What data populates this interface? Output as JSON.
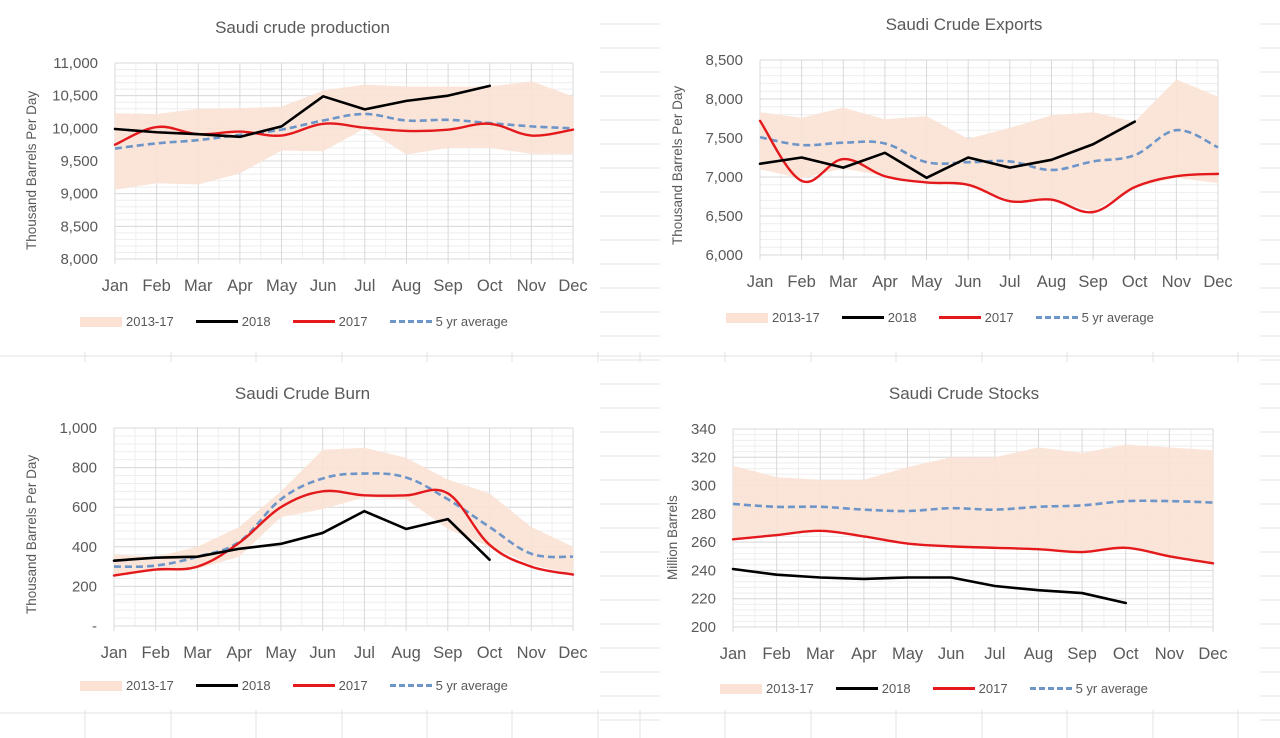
{
  "colors": {
    "band": "#fbe2d5",
    "y2018": "#000000",
    "y2017": "#e3191c",
    "avg": "#6d95c8",
    "grid_major": "#d9d9d9",
    "grid_minor": "#eeeeee",
    "text": "#595959"
  },
  "legend_labels": {
    "band": "2013-17",
    "y2018": "2018",
    "y2017": "2017",
    "avg": "5 yr average"
  },
  "chart_data": [
    {
      "id": "production",
      "type": "line",
      "title": "Saudi crude production",
      "xlabel": "",
      "ylabel": "Thousand Barrels Per Day",
      "categories": [
        "Jan",
        "Feb",
        "Mar",
        "Apr",
        "May",
        "Jun",
        "Jul",
        "Aug",
        "Sep",
        "Oct",
        "Nov",
        "Dec"
      ],
      "ylim": [
        8000,
        11000
      ],
      "yticks": [
        8000,
        8500,
        9000,
        9500,
        10000,
        10500,
        11000
      ],
      "ytick_labels": [
        "8,000",
        "8,500",
        "9,000",
        "9,500",
        "10,000",
        "10,500",
        "11,000"
      ],
      "grid": true,
      "legend_position": "bottom",
      "band": {
        "name": "2013-17",
        "upper": [
          10230,
          10220,
          10300,
          10310,
          10330,
          10580,
          10670,
          10640,
          10640,
          10640,
          10720,
          10490
        ],
        "lower": [
          9060,
          9160,
          9140,
          9310,
          9660,
          9650,
          10000,
          9600,
          9700,
          9700,
          9610,
          9610
        ]
      },
      "series": [
        {
          "name": "2018",
          "values": [
            9990,
            9940,
            9910,
            9870,
            10030,
            10490,
            10290,
            10420,
            10500,
            10650,
            null,
            null
          ]
        },
        {
          "name": "2017",
          "values": [
            9750,
            10020,
            9910,
            9950,
            9890,
            10070,
            10010,
            9960,
            9980,
            10070,
            9890,
            9980
          ]
        },
        {
          "name": "5 yr average",
          "values": [
            9690,
            9770,
            9820,
            9900,
            9980,
            10120,
            10220,
            10120,
            10130,
            10080,
            10030,
            10000
          ]
        }
      ]
    },
    {
      "id": "exports",
      "type": "line",
      "title": "Saudi Crude Exports",
      "xlabel": "",
      "ylabel": "Thousand Barrels Per Day",
      "categories": [
        "Jan",
        "Feb",
        "Mar",
        "Apr",
        "May",
        "Jun",
        "Jul",
        "Aug",
        "Sep",
        "Oct",
        "Nov",
        "Dec"
      ],
      "ylim": [
        6000,
        8500
      ],
      "yticks": [
        6000,
        6500,
        7000,
        7500,
        8000,
        8500
      ],
      "ytick_labels": [
        "6,000",
        "6,500",
        "7,000",
        "7,500",
        "8,000",
        "8,500"
      ],
      "grid": true,
      "legend_position": "bottom",
      "band": {
        "name": "2013-17",
        "upper": [
          7830,
          7760,
          7890,
          7740,
          7780,
          7490,
          7630,
          7790,
          7830,
          7710,
          8250,
          8030
        ],
        "lower": [
          7100,
          6980,
          7110,
          7010,
          6930,
          6900,
          6700,
          6710,
          6560,
          6870,
          6990,
          6920
        ]
      },
      "series": [
        {
          "name": "2018",
          "values": [
            7170,
            7250,
            7120,
            7310,
            6990,
            7250,
            7120,
            7220,
            7420,
            7710,
            null,
            null
          ]
        },
        {
          "name": "2017",
          "values": [
            7720,
            6950,
            7230,
            7010,
            6930,
            6900,
            6690,
            6710,
            6550,
            6870,
            7010,
            7040
          ]
        },
        {
          "name": "5 yr average",
          "values": [
            7510,
            7410,
            7440,
            7430,
            7190,
            7190,
            7200,
            7090,
            7200,
            7280,
            7600,
            7380
          ]
        }
      ]
    },
    {
      "id": "burn",
      "type": "line",
      "title": "Saudi Crude Burn",
      "xlabel": "",
      "ylabel": "Thousand Barrels Per Day",
      "categories": [
        "Jan",
        "Feb",
        "Mar",
        "Apr",
        "May",
        "Jun",
        "Jul",
        "Aug",
        "Sep",
        "Oct",
        "Nov",
        "Dec"
      ],
      "ylim": [
        0,
        1000
      ],
      "yticks": [
        0,
        200,
        400,
        600,
        800,
        1000
      ],
      "ytick_labels": [
        "-",
        "200",
        "400",
        "600",
        "800",
        "1,000"
      ],
      "grid": true,
      "legend_position": "bottom",
      "band": {
        "name": "2013-17",
        "upper": [
          360,
          350,
          400,
          500,
          680,
          890,
          900,
          850,
          740,
          670,
          500,
          400
        ],
        "lower": [
          250,
          280,
          290,
          350,
          550,
          590,
          650,
          640,
          490,
          400,
          310,
          260
        ]
      },
      "series": [
        {
          "name": "2018",
          "values": [
            330,
            345,
            350,
            390,
            415,
            470,
            580,
            490,
            540,
            335,
            null,
            null
          ]
        },
        {
          "name": "2017",
          "values": [
            255,
            285,
            300,
            420,
            600,
            680,
            660,
            660,
            670,
            410,
            300,
            260
          ]
        },
        {
          "name": "5 yr average",
          "values": [
            300,
            305,
            350,
            425,
            640,
            745,
            770,
            750,
            640,
            500,
            365,
            350
          ]
        }
      ]
    },
    {
      "id": "stocks",
      "type": "line",
      "title": "Saudi Crude Stocks",
      "xlabel": "",
      "ylabel": "Million Barrels",
      "categories": [
        "Jan",
        "Feb",
        "Mar",
        "Apr",
        "May",
        "Jun",
        "Jul",
        "Aug",
        "Sep",
        "Oct",
        "Nov",
        "Dec"
      ],
      "ylim": [
        200,
        340
      ],
      "yticks": [
        200,
        220,
        240,
        260,
        280,
        300,
        320,
        340
      ],
      "ytick_labels": [
        "200",
        "220",
        "240",
        "260",
        "280",
        "300",
        "320",
        "340"
      ],
      "grid": true,
      "legend_position": "bottom",
      "band": {
        "name": "2013-17",
        "upper": [
          314,
          306,
          304,
          304,
          313,
          320,
          320,
          327,
          323,
          329,
          327,
          325
        ],
        "lower": [
          262,
          265,
          268,
          264,
          259,
          257,
          256,
          255,
          253,
          256,
          250,
          245
        ]
      },
      "series": [
        {
          "name": "2018",
          "values": [
            241,
            237,
            235,
            234,
            235,
            235,
            229,
            226,
            224,
            217,
            null,
            null
          ]
        },
        {
          "name": "2017",
          "values": [
            262,
            265,
            268,
            264,
            259,
            257,
            256,
            255,
            253,
            256,
            250,
            245
          ]
        },
        {
          "name": "5 yr average",
          "values": [
            287,
            285,
            285,
            283,
            282,
            284,
            283,
            285,
            286,
            289,
            289,
            288
          ]
        }
      ]
    }
  ]
}
